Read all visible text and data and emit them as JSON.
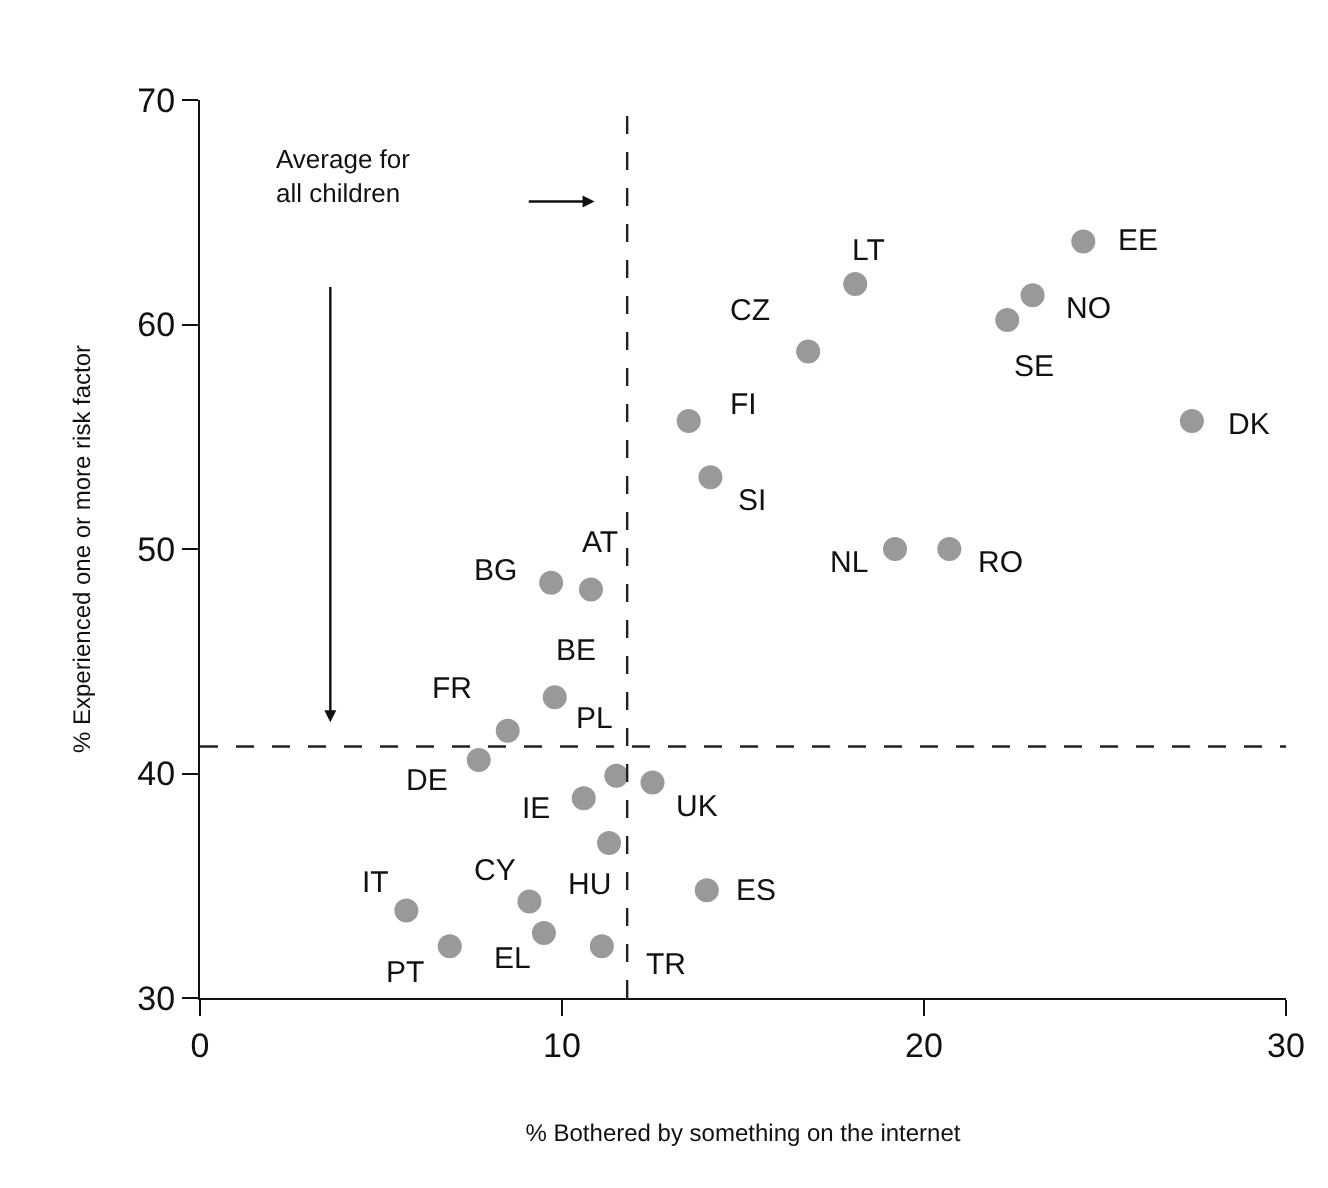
{
  "chart_data": {
    "type": "scatter",
    "xlabel": "% Bothered by something on the internet",
    "ylabel": "% Experienced one or more risk factor",
    "x": [
      9.7,
      10.8,
      9.8,
      8.5,
      7.7,
      11.5,
      12.5,
      10.6,
      11.3,
      14.0,
      5.7,
      9.1,
      9.5,
      6.9,
      11.1,
      24.4,
      18.1,
      23.0,
      22.3,
      16.8,
      13.5,
      27.4,
      14.1,
      19.2,
      20.7
    ],
    "values": [
      48.5,
      48.2,
      43.4,
      41.9,
      40.6,
      39.9,
      39.6,
      38.9,
      36.9,
      34.8,
      33.9,
      34.3,
      32.9,
      32.3,
      32.3,
      63.7,
      61.8,
      61.3,
      60.2,
      58.8,
      55.7,
      55.7,
      53.2,
      50.0,
      50.0
    ],
    "color": "#999999",
    "marker": "circle",
    "xlim": [
      0,
      30
    ],
    "xticks": [
      0,
      10,
      20,
      30
    ],
    "ylim": [
      30,
      70
    ],
    "yticks": [
      30,
      40,
      50,
      60,
      70
    ],
    "legend": false,
    "ref_lines": [
      {
        "axis": "x",
        "value": 11.8,
        "line_style": "dashed"
      },
      {
        "axis": "y",
        "value": 41.2,
        "line_style": "dashed"
      }
    ],
    "annotations": [
      {
        "text": "BG",
        "x": 9.7,
        "y": 48.5
      },
      {
        "text": "AT",
        "x": 10.8,
        "y": 48.2
      },
      {
        "text": "BE",
        "x": 9.8,
        "y": 43.4
      },
      {
        "text": "FR",
        "x": 8.5,
        "y": 41.9
      },
      {
        "text": "DE",
        "x": 7.7,
        "y": 40.6
      },
      {
        "text": "PL",
        "x": 11.5,
        "y": 39.9
      },
      {
        "text": "UK",
        "x": 12.5,
        "y": 39.6
      },
      {
        "text": "IE",
        "x": 10.6,
        "y": 38.9
      },
      {
        "text": "HU",
        "x": 11.3,
        "y": 36.9
      },
      {
        "text": "ES",
        "x": 14.0,
        "y": 34.8
      },
      {
        "text": "IT",
        "x": 5.7,
        "y": 33.9
      },
      {
        "text": "CY",
        "x": 9.1,
        "y": 34.3
      },
      {
        "text": "EL",
        "x": 9.5,
        "y": 32.9
      },
      {
        "text": "PT",
        "x": 6.9,
        "y": 32.3
      },
      {
        "text": "TR",
        "x": 11.1,
        "y": 32.3
      },
      {
        "text": "EE",
        "x": 24.4,
        "y": 63.7
      },
      {
        "text": "LT",
        "x": 18.1,
        "y": 61.8
      },
      {
        "text": "NO",
        "x": 23.0,
        "y": 61.3
      },
      {
        "text": "SE",
        "x": 22.3,
        "y": 60.2
      },
      {
        "text": "CZ",
        "x": 16.8,
        "y": 58.8
      },
      {
        "text": "FI",
        "x": 13.5,
        "y": 55.7
      },
      {
        "text": "DK",
        "x": 27.4,
        "y": 55.7
      },
      {
        "text": "SI",
        "x": 14.1,
        "y": 53.2
      },
      {
        "text": "NL",
        "x": 19.2,
        "y": 50.0
      },
      {
        "text": "RO",
        "x": 20.7,
        "y": 50.0
      },
      "Average for\nall children"
    ]
  }
}
